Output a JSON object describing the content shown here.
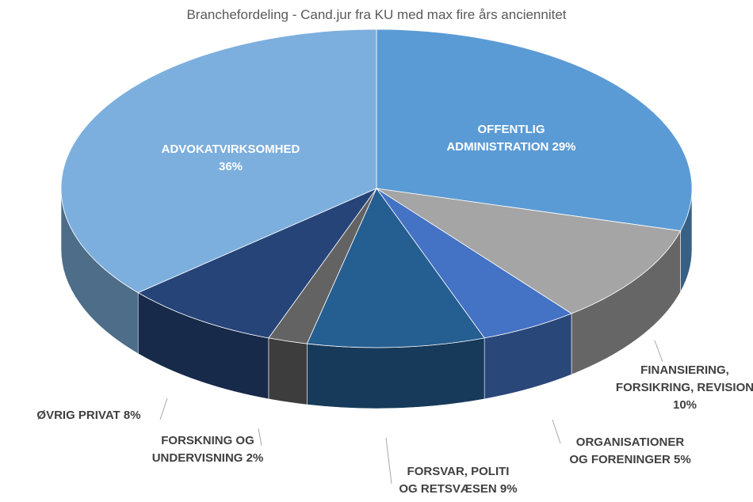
{
  "chart_data": {
    "type": "pie",
    "title": "Branchefordeling - Cand.jur fra KU med max fire års anciennitet",
    "style": "3d",
    "slices": [
      {
        "key": "offentlig",
        "label_lines": [
          "OFFENTLIG",
          "ADMINISTRATION 29%"
        ],
        "value": 29,
        "color": "#5b9bd5"
      },
      {
        "key": "finans",
        "label_lines": [
          "FINANSIERING,",
          "FORSIKRING, REVISION",
          "10%"
        ],
        "value": 10,
        "color": "#a5a5a5"
      },
      {
        "key": "org",
        "label_lines": [
          "ORGANISATIONER",
          "OG FORENINGER 5%"
        ],
        "value": 5,
        "color": "#4472c4"
      },
      {
        "key": "forsvar",
        "label_lines": [
          "FORSVAR, POLITI",
          "OG RETSVÆSEN 9%"
        ],
        "value": 9,
        "color": "#255e91"
      },
      {
        "key": "forskning",
        "label_lines": [
          "FORSKNING OG",
          "UNDERVISNING 2%"
        ],
        "value": 2,
        "color": "#636363"
      },
      {
        "key": "oevrig",
        "label_lines": [
          "ØVRIG PRIVAT 8%"
        ],
        "value": 8,
        "color": "#264478"
      },
      {
        "key": "advokat",
        "label_lines": [
          "ADVOKATVIRKSOMHED",
          "36%"
        ],
        "value": 36,
        "color": "#7cafdd"
      }
    ],
    "legend": "none",
    "data_labels": "category name and percentage"
  }
}
